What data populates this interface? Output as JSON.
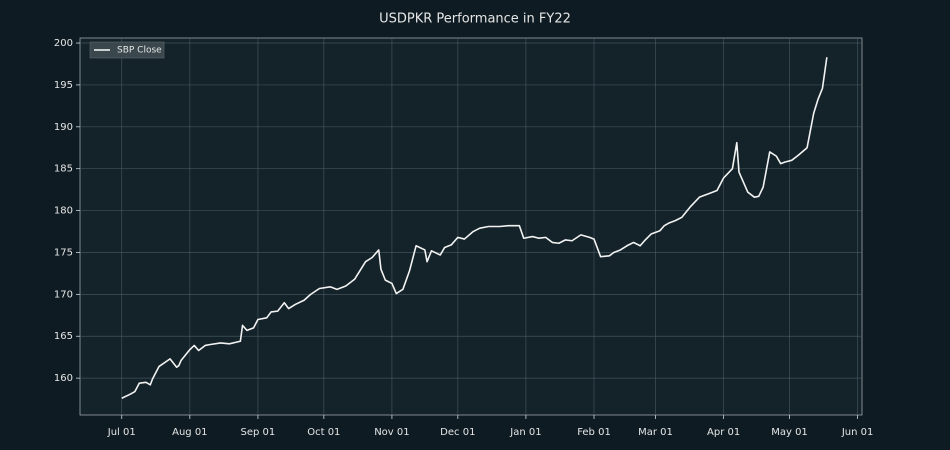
{
  "chart_data": {
    "type": "line",
    "title": "USDPKR Performance in FY22",
    "x": [
      "Jul 01",
      "Jul 05",
      "Jul 07",
      "Jul 09",
      "Jul 12",
      "Jul 14",
      "Jul 15",
      "Jul 18",
      "Jul 23",
      "Jul 26",
      "Jul 27",
      "Jul 28",
      "Aug 01",
      "Aug 03",
      "Aug 05",
      "Aug 08",
      "Aug 10",
      "Aug 15",
      "Aug 19",
      "Aug 24",
      "Aug 25",
      "Aug 27",
      "Aug 30",
      "Sep 01",
      "Sep 05",
      "Sep 07",
      "Sep 10",
      "Sep 13",
      "Sep 15",
      "Sep 18",
      "Sep 22",
      "Sep 25",
      "Sep 29",
      "Oct 04",
      "Oct 07",
      "Oct 11",
      "Oct 15",
      "Oct 20",
      "Oct 23",
      "Oct 26",
      "Oct 27",
      "Oct 29",
      "Nov 01",
      "Nov 03",
      "Nov 06",
      "Nov 09",
      "Nov 12",
      "Nov 16",
      "Nov 17",
      "Nov 19",
      "Nov 23",
      "Nov 25",
      "Nov 28",
      "Dec 01",
      "Dec 04",
      "Dec 08",
      "Dec 11",
      "Dec 15",
      "Dec 20",
      "Dec 24",
      "Dec 29",
      "Dec 31",
      "Jan 04",
      "Jan 07",
      "Jan 10",
      "Jan 13",
      "Jan 16",
      "Jan 19",
      "Jan 22",
      "Jan 26",
      "Jan 30",
      "Feb 01",
      "Feb 04",
      "Feb 08",
      "Feb 10",
      "Feb 13",
      "Feb 16",
      "Feb 19",
      "Feb 22",
      "Feb 24",
      "Feb 27",
      "Mar 03",
      "Mar 05",
      "Mar 07",
      "Mar 10",
      "Mar 13",
      "Mar 17",
      "Mar 21",
      "Mar 25",
      "Mar 29",
      "Apr 01",
      "Apr 05",
      "Apr 07",
      "Apr 08",
      "Apr 12",
      "Apr 15",
      "Apr 17",
      "Apr 19",
      "Apr 22",
      "Apr 25",
      "Apr 27",
      "Apr 29",
      "May 02",
      "May 05",
      "May 09",
      "May 12",
      "May 14",
      "May 16",
      "May 18"
    ],
    "series": [
      {
        "name": "SBP Close",
        "color": "#f2f2f2",
        "values": [
          157.6,
          158.1,
          158.4,
          159.4,
          159.5,
          159.2,
          159.9,
          161.4,
          162.3,
          161.3,
          161.5,
          162.1,
          163.4,
          163.9,
          163.3,
          163.9,
          164.0,
          164.2,
          164.1,
          164.4,
          166.3,
          165.7,
          166.0,
          167.0,
          167.2,
          167.9,
          168.0,
          169.0,
          168.3,
          168.8,
          169.3,
          170.0,
          170.7,
          170.9,
          170.6,
          171.0,
          171.8,
          173.9,
          174.4,
          175.3,
          173.0,
          171.7,
          171.3,
          170.1,
          170.6,
          172.8,
          175.8,
          175.3,
          173.9,
          175.2,
          174.7,
          175.6,
          175.9,
          176.8,
          176.6,
          177.5,
          177.9,
          178.1,
          178.1,
          178.2,
          178.2,
          176.7,
          176.9,
          176.7,
          176.8,
          176.2,
          176.1,
          176.5,
          176.4,
          177.1,
          176.8,
          176.6,
          174.5,
          174.6,
          175.0,
          175.3,
          175.8,
          176.2,
          175.8,
          176.4,
          177.2,
          177.6,
          178.2,
          178.5,
          178.8,
          179.2,
          180.5,
          181.6,
          182.0,
          182.4,
          183.9,
          185.0,
          188.1,
          184.6,
          182.2,
          181.6,
          181.7,
          182.8,
          187.0,
          186.5,
          185.6,
          185.8,
          186.0,
          186.6,
          187.5,
          191.6,
          193.3,
          194.6,
          198.3
        ]
      }
    ],
    "xlim": [
      "Jun 12",
      "Jun 03"
    ],
    "xticks": [
      "Jul 01",
      "Aug 01",
      "Sep 01",
      "Oct 01",
      "Nov 01",
      "Dec 01",
      "Jan 01",
      "Feb 01",
      "Mar 01",
      "Apr 01",
      "May 01",
      "Jun 01"
    ],
    "ylim": [
      155.6,
      200.6
    ],
    "yticks": [
      160,
      165,
      170,
      175,
      180,
      185,
      190,
      195,
      200
    ],
    "grid": true,
    "legend": "upper left"
  }
}
